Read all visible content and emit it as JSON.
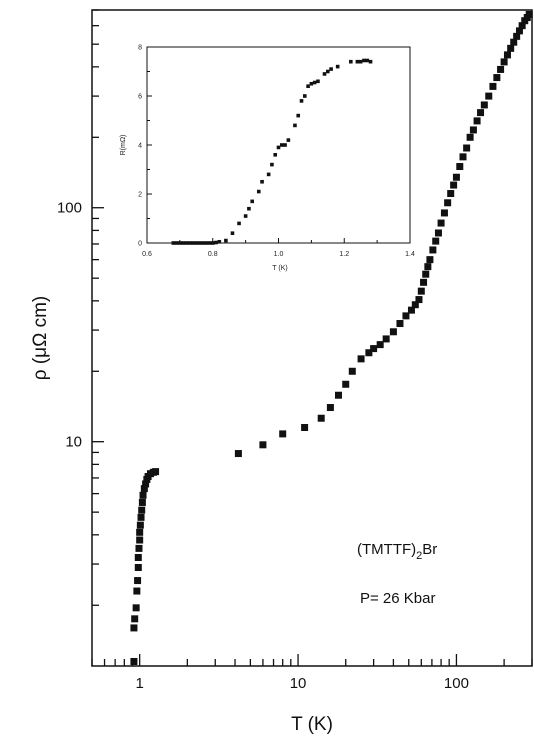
{
  "chart_data": [
    {
      "type": "scatter",
      "xscale": "log",
      "yscale": "log",
      "xlabel": "T (K)",
      "ylabel": "ρ  (μΩ cm)",
      "xlim": [
        0.5,
        300
      ],
      "ylim": [
        1.1,
        700
      ],
      "x_ticks": [
        {
          "value": 1,
          "label": "1"
        },
        {
          "value": 10,
          "label": "10"
        },
        {
          "value": 100,
          "label": "100"
        }
      ],
      "y_ticks": [
        {
          "value": 10,
          "label": "10"
        },
        {
          "value": 100,
          "label": "100"
        }
      ],
      "annotations": [
        "(TMTTF)",
        "2",
        "Br",
        "P= 26 Kbar"
      ],
      "series": [
        {
          "marker": "square",
          "points": [
            [
              0.92,
              1.15
            ],
            [
              0.92,
              1.6
            ],
            [
              0.93,
              1.75
            ],
            [
              0.95,
              1.95
            ],
            [
              0.96,
              2.3
            ],
            [
              0.97,
              2.55
            ],
            [
              0.98,
              2.9
            ],
            [
              0.98,
              3.2
            ],
            [
              0.99,
              3.5
            ],
            [
              1.0,
              3.8
            ],
            [
              1.0,
              4.1
            ],
            [
              1.01,
              4.4
            ],
            [
              1.02,
              4.75
            ],
            [
              1.03,
              5.1
            ],
            [
              1.04,
              5.5
            ],
            [
              1.05,
              5.9
            ],
            [
              1.07,
              6.3
            ],
            [
              1.09,
              6.6
            ],
            [
              1.11,
              6.9
            ],
            [
              1.13,
              7.1
            ],
            [
              1.17,
              7.3
            ],
            [
              1.22,
              7.4
            ],
            [
              1.26,
              7.45
            ],
            [
              4.2,
              8.9
            ],
            [
              6.0,
              9.7
            ],
            [
              8.0,
              10.8
            ],
            [
              11.0,
              11.5
            ],
            [
              14.0,
              12.6
            ],
            [
              16.0,
              14.0
            ],
            [
              18.0,
              15.8
            ],
            [
              20.0,
              17.6
            ],
            [
              22.0,
              20.0
            ],
            [
              25.0,
              22.6
            ],
            [
              28.0,
              24.0
            ],
            [
              30.0,
              25.0
            ],
            [
              33.0,
              26.0
            ],
            [
              36.0,
              27.5
            ],
            [
              40.0,
              29.5
            ],
            [
              44.0,
              32.0
            ],
            [
              48.0,
              34.5
            ],
            [
              52.0,
              36.5
            ],
            [
              55.0,
              38.5
            ],
            [
              58.0,
              40.5
            ],
            [
              60.0,
              44.0
            ],
            [
              62.0,
              48.0
            ],
            [
              64.0,
              52.0
            ],
            [
              66.0,
              56.0
            ],
            [
              68.0,
              60.0
            ],
            [
              71.0,
              66.0
            ],
            [
              74.0,
              72.0
            ],
            [
              77.0,
              78.0
            ],
            [
              80.0,
              86.0
            ],
            [
              84.0,
              95.0
            ],
            [
              88.0,
              105.0
            ],
            [
              92.0,
              115.0
            ],
            [
              96.0,
              125.0
            ],
            [
              100.0,
              135.0
            ],
            [
              105.0,
              150.0
            ],
            [
              110.0,
              165.0
            ],
            [
              116.0,
              180.0
            ],
            [
              122.0,
              200.0
            ],
            [
              128.0,
              215.0
            ],
            [
              135.0,
              235.0
            ],
            [
              142.0,
              255.0
            ],
            [
              150.0,
              275.0
            ],
            [
              160.0,
              300.0
            ],
            [
              170.0,
              330.0
            ],
            [
              180.0,
              360.0
            ],
            [
              190.0,
              390.0
            ],
            [
              200.0,
              420.0
            ],
            [
              210.0,
              450.0
            ],
            [
              220.0,
              480.0
            ],
            [
              230.0,
              510.0
            ],
            [
              240.0,
              540.0
            ],
            [
              250.0,
              570.0
            ],
            [
              260.0,
              600.0
            ],
            [
              270.0,
              630.0
            ],
            [
              280.0,
              650.0
            ],
            [
              288.0,
              670.0
            ]
          ]
        }
      ]
    },
    {
      "type": "scatter",
      "xlabel": "T (K)",
      "ylabel": "R(mΩ)",
      "xlim": [
        0.6,
        1.4
      ],
      "ylim": [
        0,
        8
      ],
      "x_ticks": [
        {
          "value": 0.6,
          "label": "0.6"
        },
        {
          "value": 0.8,
          "label": "0.8"
        },
        {
          "value": 1.0,
          "label": "1.0"
        },
        {
          "value": 1.2,
          "label": "1.2"
        },
        {
          "value": 1.4,
          "label": "1.4"
        }
      ],
      "y_ticks": [
        {
          "value": 0,
          "label": "0"
        },
        {
          "value": 2,
          "label": "2"
        },
        {
          "value": 4,
          "label": "4"
        },
        {
          "value": 6,
          "label": "6"
        },
        {
          "value": 8,
          "label": "8"
        }
      ],
      "series": [
        {
          "marker": "square",
          "points": [
            [
              0.68,
              0.0
            ],
            [
              0.69,
              0.0
            ],
            [
              0.7,
              0.0
            ],
            [
              0.71,
              0.0
            ],
            [
              0.72,
              0.0
            ],
            [
              0.73,
              0.0
            ],
            [
              0.74,
              0.0
            ],
            [
              0.75,
              0.0
            ],
            [
              0.76,
              0.0
            ],
            [
              0.77,
              0.0
            ],
            [
              0.78,
              0.0
            ],
            [
              0.79,
              0.0
            ],
            [
              0.8,
              0.0
            ],
            [
              0.81,
              0.02
            ],
            [
              0.82,
              0.05
            ],
            [
              0.84,
              0.1
            ],
            [
              0.86,
              0.4
            ],
            [
              0.88,
              0.8
            ],
            [
              0.9,
              1.1
            ],
            [
              0.91,
              1.4
            ],
            [
              0.92,
              1.7
            ],
            [
              0.94,
              2.1
            ],
            [
              0.95,
              2.5
            ],
            [
              0.97,
              2.8
            ],
            [
              0.98,
              3.2
            ],
            [
              0.99,
              3.6
            ],
            [
              1.0,
              3.9
            ],
            [
              1.01,
              4.0
            ],
            [
              1.02,
              4.0
            ],
            [
              1.03,
              4.2
            ],
            [
              1.05,
              4.8
            ],
            [
              1.06,
              5.2
            ],
            [
              1.07,
              5.8
            ],
            [
              1.08,
              6.0
            ],
            [
              1.09,
              6.4
            ],
            [
              1.1,
              6.5
            ],
            [
              1.11,
              6.55
            ],
            [
              1.12,
              6.6
            ],
            [
              1.14,
              6.9
            ],
            [
              1.15,
              7.0
            ],
            [
              1.16,
              7.1
            ],
            [
              1.18,
              7.2
            ],
            [
              1.22,
              7.4
            ],
            [
              1.24,
              7.4
            ],
            [
              1.25,
              7.4
            ],
            [
              1.26,
              7.45
            ],
            [
              1.27,
              7.45
            ],
            [
              1.28,
              7.4
            ]
          ]
        }
      ]
    }
  ]
}
